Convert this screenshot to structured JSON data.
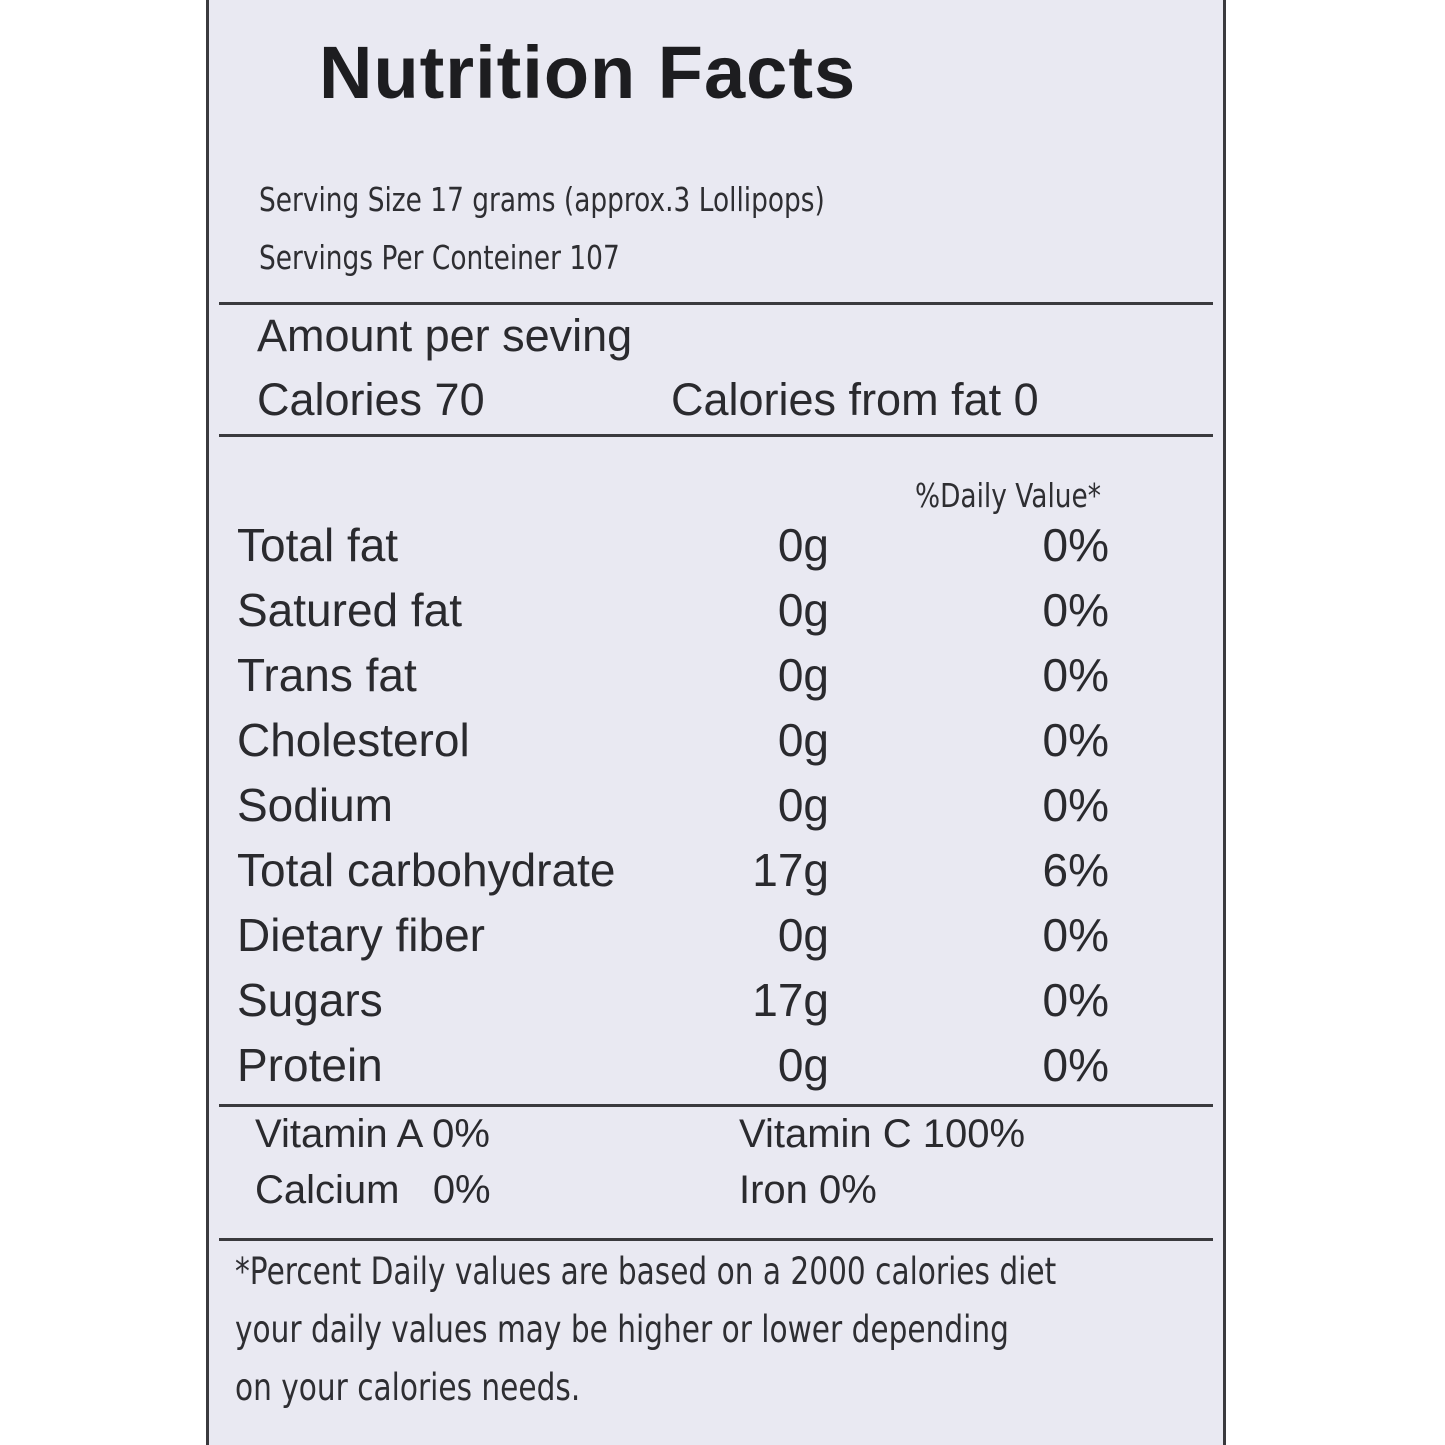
{
  "label": {
    "title": "Nutrition Facts",
    "serving_size": "Serving Size 17 grams (approx.3 Lollipops)",
    "servings_per_container": "Servings Per Conteiner 107",
    "amount_per_serving": "Amount per seving",
    "calories": "Calories 70",
    "calories_from_fat": "Calories from fat 0",
    "daily_value_header": "%Daily Value*",
    "nutrients": [
      {
        "name": "Total fat",
        "amount": "0g",
        "dv": "0%"
      },
      {
        "name": "Satured fat",
        "amount": "0g",
        "dv": "0%"
      },
      {
        "name": "Trans fat",
        "amount": "0g",
        "dv": "0%"
      },
      {
        "name": "Cholesterol",
        "amount": "0g",
        "dv": "0%"
      },
      {
        "name": "Sodium",
        "amount": "0g",
        "dv": "0%"
      },
      {
        "name": "Total carbohydrate",
        "amount": "17g",
        "dv": "6%"
      },
      {
        "name": "Dietary fiber",
        "amount": "0g",
        "dv": "0%"
      },
      {
        "name": "Sugars",
        "amount": "17g",
        "dv": "0%"
      },
      {
        "name": "Protein",
        "amount": "0g",
        "dv": "0%"
      }
    ],
    "vitamins": {
      "vitamin_a": "Vitamin A 0%",
      "vitamin_c": "Vitamin C 100%",
      "calcium": "Calcium   0%",
      "iron": "Iron 0%"
    },
    "footnote": [
      "*Percent Daily values are based on a 2000 calories diet",
      "your daily values may be higher or lower depending",
      "on your calories needs."
    ],
    "colors": {
      "background": "#e9e9f2",
      "text": "#2a2a2e",
      "rule": "#3a3a3e"
    }
  }
}
